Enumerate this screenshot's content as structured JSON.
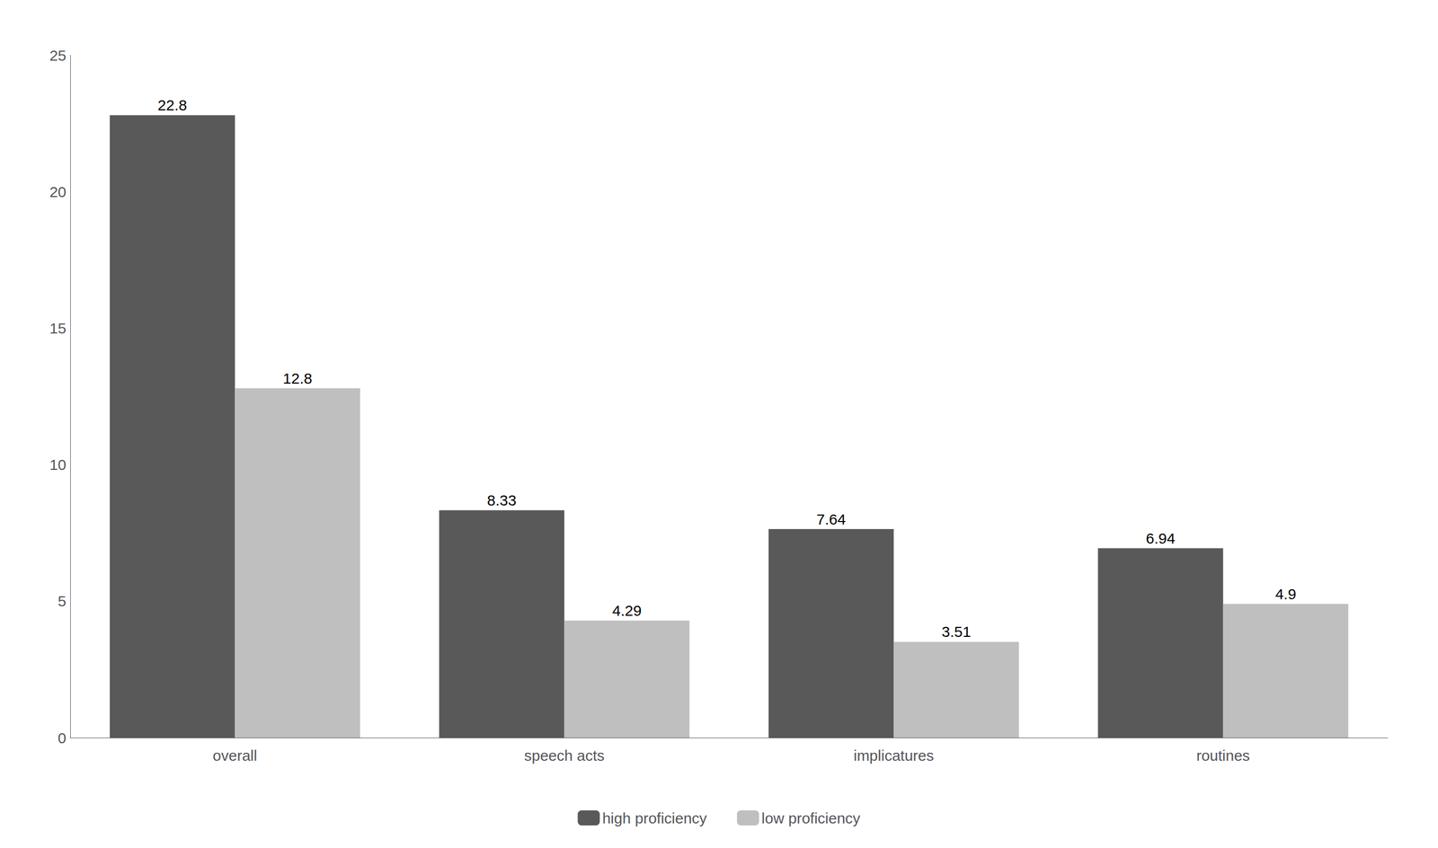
{
  "chart_data": {
    "type": "bar",
    "categories": [
      "overall",
      "speech acts",
      "implicatures",
      "routines"
    ],
    "series": [
      {
        "name": "high proficiency",
        "color": "#595959",
        "values": [
          22.8,
          8.33,
          7.64,
          6.94
        ]
      },
      {
        "name": "low proficiency",
        "color": "#bfbfbf",
        "values": [
          12.8,
          4.29,
          3.51,
          4.9
        ]
      }
    ],
    "ylim": [
      0,
      25
    ],
    "yticks": [
      0,
      5,
      10,
      15,
      20,
      25
    ],
    "grid": false,
    "legend": "bottom",
    "data_labels": true
  }
}
